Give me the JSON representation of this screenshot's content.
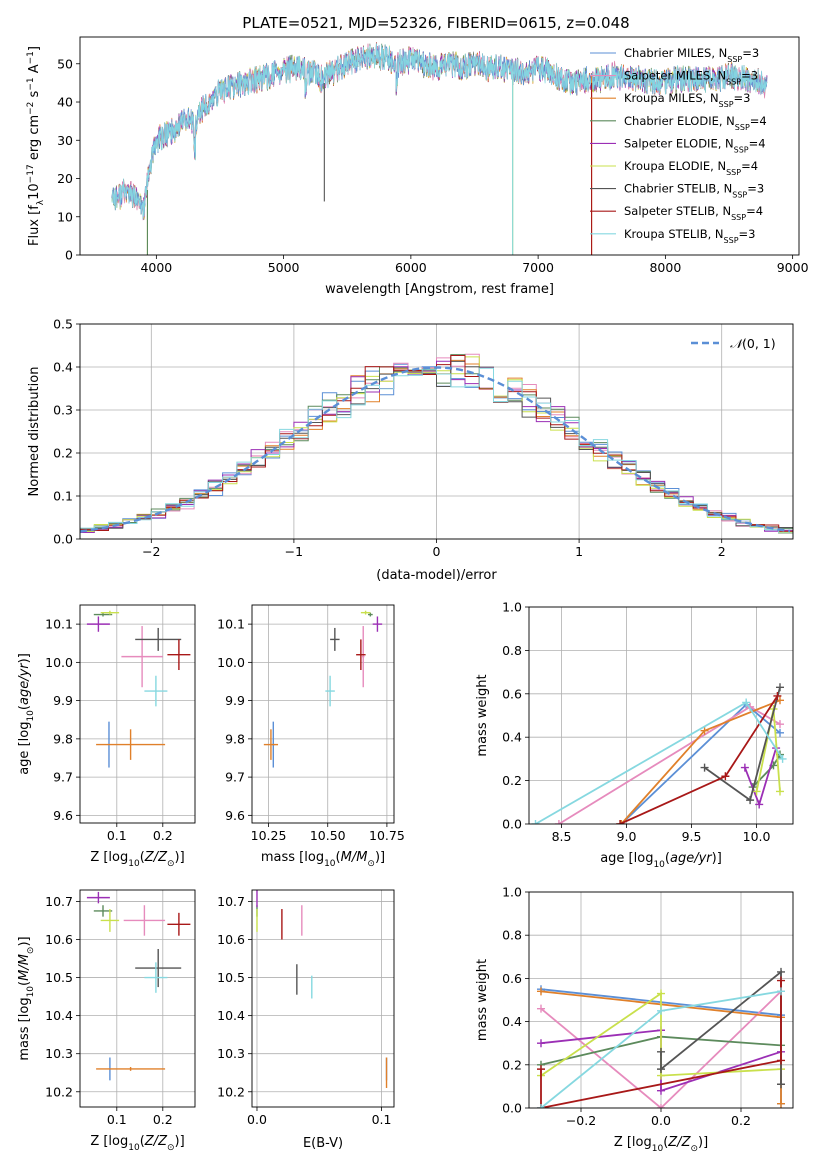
{
  "title": "PLATE=0521, MJD=52326, FIBERID=0615, z=0.048",
  "series": [
    {
      "name": "Chabrier MILES, N_SSP=3",
      "color": "#5b8fd6"
    },
    {
      "name": "Salpeter MILES, N_SSP=3",
      "color": "#e68bbd"
    },
    {
      "name": "Kroupa MILES, N_SSP=3",
      "color": "#e0802a"
    },
    {
      "name": "Chabrier ELODIE, N_SSP=4",
      "color": "#5c8a5c"
    },
    {
      "name": "Salpeter ELODIE, N_SSP=4",
      "color": "#9b2fb5"
    },
    {
      "name": "Kroupa ELODIE, N_SSP=4",
      "color": "#c9e04c"
    },
    {
      "name": "Chabrier STELIB, N_SSP=3",
      "color": "#555555"
    },
    {
      "name": "Salpeter STELIB, N_SSP=4",
      "color": "#a81818"
    },
    {
      "name": "Kroupa STELIB, N_SSP=3",
      "color": "#86d8e0"
    }
  ],
  "chart_data": [
    {
      "type": "line",
      "xlabel": "wavelength [Angstrom, rest frame]",
      "ylabel": "Flux [f_λ 10^-17 erg cm^-2 s^-1 A^-1]",
      "xlim": [
        3400,
        9050
      ],
      "ylim": [
        0,
        57
      ],
      "xticks": [
        "4000",
        "5000",
        "6000",
        "7000",
        "8000",
        "9000"
      ],
      "yticks": [
        "0",
        "10",
        "20",
        "30",
        "40",
        "50"
      ],
      "spectrum": {
        "x": [
          3650,
          3700,
          3750,
          3800,
          3850,
          3900,
          3950,
          4000,
          4050,
          4100,
          4150,
          4200,
          4250,
          4300,
          4350,
          4400,
          4450,
          4500,
          4600,
          4700,
          4800,
          4900,
          5000,
          5100,
          5200,
          5300,
          5400,
          5500,
          5600,
          5700,
          5800,
          5900,
          6000,
          6100,
          6200,
          6300,
          6400,
          6500,
          6600,
          6700,
          6800,
          6900,
          7000,
          7100,
          7200,
          7300,
          7400,
          7500,
          7600,
          7700,
          7800,
          7900,
          8000,
          8100,
          8200,
          8300,
          8400,
          8500,
          8600,
          8700,
          8800
        ],
        "y": [
          16,
          15,
          17,
          16,
          14,
          12,
          23,
          30,
          31,
          32,
          33,
          35,
          36,
          33,
          38,
          39,
          41,
          43,
          44,
          45,
          46,
          47,
          48,
          49,
          48,
          46,
          48,
          50,
          51,
          52,
          52,
          50,
          51,
          50,
          49,
          50,
          49,
          50,
          49,
          49,
          48,
          48,
          49,
          48,
          46,
          45,
          46,
          46,
          47,
          46,
          46,
          45,
          45,
          46,
          46,
          46,
          46,
          47,
          46,
          46,
          44
        ]
      },
      "legend": "right"
    },
    {
      "type": "histogram",
      "xlabel": "(data-model)/error",
      "ylabel": "Normed distribution",
      "xlim": [
        -2.5,
        2.5
      ],
      "ylim": [
        0,
        0.5
      ],
      "xticks": [
        "−2",
        "−1",
        "0",
        "1",
        "2"
      ],
      "yticks": [
        "0.0",
        "0.1",
        "0.2",
        "0.3",
        "0.4",
        "0.5"
      ],
      "reference_curve": "N(0,1)",
      "bin_width": 0.1
    },
    {
      "type": "scatter",
      "xlabel": "Z [log10(Z/Z☉)]",
      "ylabel": "age  [log10(age/yr)]",
      "xlim": [
        0.02,
        0.27
      ],
      "ylim": [
        9.58,
        10.15
      ],
      "xticks": [
        "0.1",
        "0.2"
      ],
      "yticks": [
        "9.6",
        "9.7",
        "9.8",
        "9.9",
        "10.0",
        "10.1"
      ],
      "points": [
        {
          "series": 0,
          "x": 0.083,
          "y": 9.785,
          "xerr": 0.0,
          "yerr": 0.06
        },
        {
          "series": 1,
          "x": 0.155,
          "y": 10.015,
          "xerr": 0.045,
          "yerr": 0.08
        },
        {
          "series": 2,
          "x": 0.13,
          "y": 9.785,
          "xerr": 0.075,
          "yerr": 0.04
        },
        {
          "series": 3,
          "x": 0.07,
          "y": 10.125,
          "xerr": 0.02,
          "yerr": 0.005
        },
        {
          "series": 4,
          "x": 0.06,
          "y": 10.1,
          "xerr": 0.025,
          "yerr": 0.02
        },
        {
          "series": 5,
          "x": 0.085,
          "y": 10.13,
          "xerr": 0.02,
          "yerr": 0.005
        },
        {
          "series": 6,
          "x": 0.19,
          "y": 10.06,
          "xerr": 0.05,
          "yerr": 0.03
        },
        {
          "series": 7,
          "x": 0.235,
          "y": 10.02,
          "xerr": 0.025,
          "yerr": 0.04
        },
        {
          "series": 8,
          "x": 0.185,
          "y": 9.925,
          "xerr": 0.025,
          "yerr": 0.04
        }
      ]
    },
    {
      "type": "scatter",
      "xlabel": "mass [log10(M/M☉)]",
      "ylabel": "",
      "xlim": [
        10.18,
        10.78
      ],
      "ylim": [
        9.58,
        10.15
      ],
      "xticks": [
        "10.25",
        "10.50",
        "10.75"
      ],
      "yticks": [
        "9.6",
        "9.7",
        "9.8",
        "9.9",
        "10.0",
        "10.1"
      ],
      "points": [
        {
          "series": 0,
          "x": 10.27,
          "y": 9.785,
          "xerr": 0.005,
          "yerr": 0.06
        },
        {
          "series": 1,
          "x": 10.65,
          "y": 10.015,
          "xerr": 0.005,
          "yerr": 0.08
        },
        {
          "series": 2,
          "x": 10.26,
          "y": 9.785,
          "xerr": 0.03,
          "yerr": 0.04
        },
        {
          "series": 3,
          "x": 10.68,
          "y": 10.125,
          "xerr": 0.01,
          "yerr": 0.005
        },
        {
          "series": 4,
          "x": 10.71,
          "y": 10.1,
          "xerr": 0.02,
          "yerr": 0.02
        },
        {
          "series": 5,
          "x": 10.66,
          "y": 10.13,
          "xerr": 0.02,
          "yerr": 0.005
        },
        {
          "series": 6,
          "x": 10.53,
          "y": 10.06,
          "xerr": 0.02,
          "yerr": 0.03
        },
        {
          "series": 7,
          "x": 10.64,
          "y": 10.02,
          "xerr": 0.02,
          "yerr": 0.04
        },
        {
          "series": 8,
          "x": 10.51,
          "y": 9.925,
          "xerr": 0.02,
          "yerr": 0.04
        }
      ]
    },
    {
      "type": "line",
      "xlabel": "age  [log10(age/yr)]",
      "ylabel": "mass weight",
      "xlim": [
        8.25,
        10.28
      ],
      "ylim": [
        0,
        1
      ],
      "xticks": [
        "8.5",
        "9.0",
        "9.5",
        "10.0"
      ],
      "yticks": [
        "0.0",
        "0.2",
        "0.4",
        "0.6",
        "0.8",
        "1.0"
      ],
      "lines": [
        {
          "series": 0,
          "x": [
            8.96,
            9.92,
            10.18
          ],
          "y": [
            0.0,
            0.55,
            0.42
          ]
        },
        {
          "series": 1,
          "x": [
            8.48,
            9.95,
            10.18
          ],
          "y": [
            0.0,
            0.54,
            0.46
          ]
        },
        {
          "series": 2,
          "x": [
            8.96,
            9.6,
            10.18
          ],
          "y": [
            0.0,
            0.43,
            0.57
          ]
        },
        {
          "series": 3,
          "x": [
            9.97,
            10.13,
            10.18
          ],
          "y": [
            0.17,
            0.27,
            0.32
          ]
        },
        {
          "series": 4,
          "x": [
            9.91,
            10.02,
            10.15
          ],
          "y": [
            0.26,
            0.09,
            0.35
          ]
        },
        {
          "series": 5,
          "x": [
            10.0,
            10.13,
            10.18
          ],
          "y": [
            0.15,
            0.53,
            0.15
          ]
        },
        {
          "series": 6,
          "x": [
            9.6,
            9.95,
            10.18
          ],
          "y": [
            0.26,
            0.11,
            0.63
          ]
        },
        {
          "series": 7,
          "x": [
            8.95,
            9.76,
            10.16
          ],
          "y": [
            0.0,
            0.22,
            0.59
          ]
        },
        {
          "series": 8,
          "x": [
            8.3,
            9.92,
            10.2
          ],
          "y": [
            0.0,
            0.56,
            0.3
          ]
        }
      ]
    },
    {
      "type": "scatter",
      "xlabel": "Z [log10(Z/Z☉)]",
      "ylabel": "mass [log10(M/M☉)]",
      "xlim": [
        0.02,
        0.27
      ],
      "ylim": [
        10.16,
        10.73
      ],
      "xticks": [
        "0.1",
        "0.2"
      ],
      "yticks": [
        "10.2",
        "10.3",
        "10.4",
        "10.5",
        "10.6",
        "10.7"
      ],
      "points": [
        {
          "series": 0,
          "x": 0.085,
          "y": 10.26,
          "xerr": 0.0,
          "yerr": 0.03
        },
        {
          "series": 1,
          "x": 0.16,
          "y": 10.65,
          "xerr": 0.045,
          "yerr": 0.04
        },
        {
          "series": 2,
          "x": 0.13,
          "y": 10.26,
          "xerr": 0.075,
          "yerr": 0.005
        },
        {
          "series": 3,
          "x": 0.07,
          "y": 10.675,
          "xerr": 0.02,
          "yerr": 0.015
        },
        {
          "series": 4,
          "x": 0.06,
          "y": 10.71,
          "xerr": 0.025,
          "yerr": 0.015
        },
        {
          "series": 5,
          "x": 0.085,
          "y": 10.65,
          "xerr": 0.02,
          "yerr": 0.03
        },
        {
          "series": 6,
          "x": 0.19,
          "y": 10.525,
          "xerr": 0.05,
          "yerr": 0.05
        },
        {
          "series": 7,
          "x": 0.235,
          "y": 10.64,
          "xerr": 0.025,
          "yerr": 0.03
        },
        {
          "series": 8,
          "x": 0.185,
          "y": 10.5,
          "xerr": 0.025,
          "yerr": 0.04
        }
      ]
    },
    {
      "type": "scatter",
      "xlabel": "E(B-V)",
      "ylabel": "",
      "xlim": [
        -0.004,
        0.11
      ],
      "ylim": [
        10.16,
        10.73
      ],
      "xticks": [
        "0.0",
        "0.1"
      ],
      "yticks": [
        "10.2",
        "10.3",
        "10.4",
        "10.5",
        "10.6",
        "10.7"
      ],
      "points": [
        {
          "series": 0,
          "x": 0.104,
          "y": 10.26,
          "xerr": 0.0,
          "yerr": 0.03
        },
        {
          "series": 1,
          "x": 0.036,
          "y": 10.65,
          "xerr": 0.0,
          "yerr": 0.04
        },
        {
          "series": 2,
          "x": 0.104,
          "y": 10.25,
          "xerr": 0.0,
          "yerr": 0.04
        },
        {
          "series": 3,
          "x": 0.0,
          "y": 10.675,
          "xerr": 0.0,
          "yerr": 0.015
        },
        {
          "series": 4,
          "x": 0.0,
          "y": 10.71,
          "xerr": 0.0,
          "yerr": 0.025
        },
        {
          "series": 5,
          "x": 0.0,
          "y": 10.65,
          "xerr": 0.0,
          "yerr": 0.03
        },
        {
          "series": 6,
          "x": 0.032,
          "y": 10.495,
          "xerr": 0.0,
          "yerr": 0.04
        },
        {
          "series": 7,
          "x": 0.02,
          "y": 10.64,
          "xerr": 0.0,
          "yerr": 0.04
        },
        {
          "series": 8,
          "x": 0.044,
          "y": 10.475,
          "xerr": 0.0,
          "yerr": 0.03
        }
      ]
    },
    {
      "type": "line",
      "xlabel": "Z [log10(Z/Z☉)]",
      "ylabel": "mass weight",
      "xlim": [
        -0.33,
        0.33
      ],
      "ylim": [
        0,
        1
      ],
      "xticks": [
        "−0.2",
        "0.0",
        "0.2"
      ],
      "yticks": [
        "0.0",
        "0.2",
        "0.4",
        "0.6",
        "0.8",
        "1.0"
      ],
      "lines": [
        {
          "series": 0,
          "x": [
            -0.3,
            0.3,
            0.3
          ],
          "y": [
            0.55,
            0.43,
            0.02
          ]
        },
        {
          "series": 1,
          "x": [
            -0.3,
            0.0,
            0.3
          ],
          "y": [
            0.46,
            0.0,
            0.54
          ]
        },
        {
          "series": 2,
          "x": [
            -0.3,
            0.3,
            0.3
          ],
          "y": [
            0.54,
            0.42,
            0.02
          ]
        },
        {
          "series": 3,
          "x": [
            -0.3,
            0.0,
            0.3
          ],
          "y": [
            0.2,
            0.33,
            0.29
          ]
        },
        {
          "series": 4,
          "x": [
            -0.3,
            0.0,
            0.0,
            0.3
          ],
          "y": [
            0.3,
            0.36,
            0.08,
            0.26
          ]
        },
        {
          "series": 5,
          "x": [
            -0.3,
            0.0,
            0.0,
            0.3
          ],
          "y": [
            0.15,
            0.53,
            0.15,
            0.18
          ]
        },
        {
          "series": 6,
          "x": [
            0.0,
            0.0,
            0.3,
            0.3
          ],
          "y": [
            0.26,
            0.18,
            0.63,
            0.11
          ]
        },
        {
          "series": 7,
          "x": [
            -0.3,
            -0.3,
            0.3,
            0.3
          ],
          "y": [
            0.18,
            0.0,
            0.22,
            0.59
          ]
        },
        {
          "series": 8,
          "x": [
            -0.3,
            0.0,
            0.3
          ],
          "y": [
            0.0,
            0.45,
            0.54
          ]
        }
      ]
    }
  ]
}
